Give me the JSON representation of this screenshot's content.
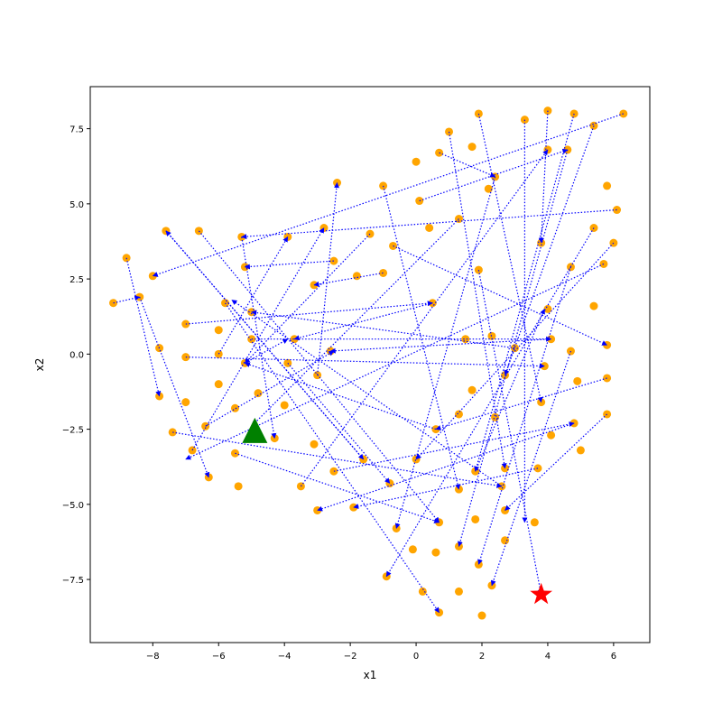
{
  "chart_data": {
    "type": "scatter",
    "title": "",
    "xlabel": "x1",
    "ylabel": "x2",
    "xlim": [
      -9.9,
      7.1
    ],
    "ylim": [
      -9.6,
      8.9
    ],
    "xticks": [
      -8,
      -6,
      -4,
      -2,
      0,
      2,
      4,
      6
    ],
    "xtick_labels": [
      "−8",
      "−6",
      "−4",
      "−2",
      "0",
      "2",
      "4",
      "6"
    ],
    "yticks": [
      -7.5,
      -5.0,
      -2.5,
      0.0,
      2.5,
      5.0,
      7.5
    ],
    "ytick_labels": [
      "−7.5",
      "−5.0",
      "−2.5",
      "0.0",
      "2.5",
      "5.0",
      "7.5"
    ],
    "grid": false,
    "colors": {
      "points": "#ffa500",
      "arrows": "#0000ff",
      "start": "#008000",
      "goal": "#ff0000"
    },
    "points": [
      [
        1.9,
        8.0
      ],
      [
        3.3,
        7.8
      ],
      [
        4.0,
        8.1
      ],
      [
        4.8,
        8.0
      ],
      [
        6.3,
        8.0
      ],
      [
        1.0,
        7.4
      ],
      [
        5.4,
        7.6
      ],
      [
        1.7,
        6.9
      ],
      [
        0.7,
        6.7
      ],
      [
        4.0,
        6.8
      ],
      [
        4.6,
        6.8
      ],
      [
        0.0,
        6.4
      ],
      [
        2.4,
        5.9
      ],
      [
        -2.4,
        5.7
      ],
      [
        -1.0,
        5.6
      ],
      [
        5.8,
        5.6
      ],
      [
        2.2,
        5.5
      ],
      [
        0.1,
        5.1
      ],
      [
        1.3,
        4.5
      ],
      [
        0.4,
        4.2
      ],
      [
        5.4,
        4.2
      ],
      [
        6.1,
        4.8
      ],
      [
        -7.6,
        4.1
      ],
      [
        -6.6,
        4.1
      ],
      [
        -2.8,
        4.2
      ],
      [
        -5.3,
        3.9
      ],
      [
        -3.9,
        3.9
      ],
      [
        -1.4,
        4.0
      ],
      [
        -0.7,
        3.6
      ],
      [
        3.8,
        3.7
      ],
      [
        6.0,
        3.7
      ],
      [
        -8.8,
        3.2
      ],
      [
        -2.5,
        3.1
      ],
      [
        -5.2,
        2.9
      ],
      [
        -8.0,
        2.6
      ],
      [
        -1.8,
        2.6
      ],
      [
        -1.0,
        2.7
      ],
      [
        1.9,
        2.8
      ],
      [
        4.7,
        2.9
      ],
      [
        5.7,
        3.0
      ],
      [
        -3.1,
        2.3
      ],
      [
        -8.4,
        1.9
      ],
      [
        -9.2,
        1.7
      ],
      [
        -5.8,
        1.7
      ],
      [
        0.5,
        1.7
      ],
      [
        5.4,
        1.6
      ],
      [
        -5.0,
        1.4
      ],
      [
        4.0,
        1.5
      ],
      [
        -7.0,
        1.0
      ],
      [
        -6.0,
        0.8
      ],
      [
        -3.7,
        0.5
      ],
      [
        -5.0,
        0.5
      ],
      [
        1.5,
        0.5
      ],
      [
        4.1,
        0.5
      ],
      [
        2.3,
        0.6
      ],
      [
        -7.8,
        0.2
      ],
      [
        3.0,
        0.2
      ],
      [
        4.7,
        0.1
      ],
      [
        5.8,
        0.3
      ],
      [
        -2.6,
        0.1
      ],
      [
        -7.0,
        -0.1
      ],
      [
        -6.0,
        0.0
      ],
      [
        -5.2,
        -0.3
      ],
      [
        -3.9,
        -0.3
      ],
      [
        3.9,
        -0.4
      ],
      [
        -3.0,
        -0.7
      ],
      [
        2.7,
        -0.7
      ],
      [
        5.8,
        -0.8
      ],
      [
        4.9,
        -0.9
      ],
      [
        -6.0,
        -1.0
      ],
      [
        -7.8,
        -1.4
      ],
      [
        -4.8,
        -1.3
      ],
      [
        1.7,
        -1.2
      ],
      [
        3.8,
        -1.6
      ],
      [
        -7.0,
        -1.6
      ],
      [
        -4.0,
        -1.7
      ],
      [
        -5.5,
        -1.8
      ],
      [
        1.3,
        -2.0
      ],
      [
        2.4,
        -2.1
      ],
      [
        5.8,
        -2.0
      ],
      [
        -6.4,
        -2.4
      ],
      [
        0.6,
        -2.5
      ],
      [
        4.8,
        -2.3
      ],
      [
        -7.4,
        -2.6
      ],
      [
        4.1,
        -2.7
      ],
      [
        -4.3,
        -2.8
      ],
      [
        -6.8,
        -3.2
      ],
      [
        -3.1,
        -3.0
      ],
      [
        5.0,
        -3.2
      ],
      [
        -5.5,
        -3.3
      ],
      [
        -1.6,
        -3.5
      ],
      [
        0.0,
        -3.5
      ],
      [
        -2.5,
        -3.9
      ],
      [
        1.8,
        -3.9
      ],
      [
        2.7,
        -3.8
      ],
      [
        3.7,
        -3.8
      ],
      [
        -6.3,
        -4.1
      ],
      [
        -3.5,
        -4.4
      ],
      [
        -0.8,
        -4.3
      ],
      [
        1.3,
        -4.5
      ],
      [
        2.6,
        -4.4
      ],
      [
        -5.4,
        -4.4
      ],
      [
        -1.9,
        -5.1
      ],
      [
        -3.0,
        -5.2
      ],
      [
        2.7,
        -5.2
      ],
      [
        0.7,
        -5.6
      ],
      [
        1.8,
        -5.5
      ],
      [
        3.6,
        -5.6
      ],
      [
        -0.6,
        -5.8
      ],
      [
        2.7,
        -6.2
      ],
      [
        -0.1,
        -6.5
      ],
      [
        1.3,
        -6.4
      ],
      [
        0.6,
        -6.6
      ],
      [
        1.9,
        -7.0
      ],
      [
        -0.9,
        -7.4
      ],
      [
        2.3,
        -7.7
      ],
      [
        0.2,
        -7.9
      ],
      [
        1.3,
        -7.9
      ],
      [
        0.7,
        -8.6
      ],
      [
        2.0,
        -8.7
      ]
    ],
    "arrows": [
      [
        [
          6.3,
          8.0
        ],
        [
          -8.0,
          2.6
        ]
      ],
      [
        [
          6.1,
          4.8
        ],
        [
          -5.3,
          3.9
        ]
      ],
      [
        [
          -8.8,
          3.2
        ],
        [
          -7.8,
          -1.4
        ]
      ],
      [
        [
          -9.2,
          1.7
        ],
        [
          -8.4,
          1.9
        ]
      ],
      [
        [
          -8.4,
          1.9
        ],
        [
          -6.3,
          -4.1
        ]
      ],
      [
        [
          -6.6,
          4.1
        ],
        [
          0.7,
          -5.6
        ]
      ],
      [
        [
          -5.3,
          3.9
        ],
        [
          -4.3,
          -2.8
        ]
      ],
      [
        [
          -5.8,
          1.7
        ],
        [
          0.7,
          -8.6
        ]
      ],
      [
        [
          -7.6,
          4.1
        ],
        [
          -1.6,
          -3.5
        ]
      ],
      [
        [
          -7.0,
          -0.1
        ],
        [
          3.9,
          -0.4
        ]
      ],
      [
        [
          -7.0,
          1.0
        ],
        [
          0.5,
          1.7
        ]
      ],
      [
        [
          -6.0,
          0.0
        ],
        [
          -3.9,
          3.9
        ]
      ],
      [
        [
          -6.8,
          -3.2
        ],
        [
          -2.8,
          4.2
        ]
      ],
      [
        [
          -6.4,
          -2.4
        ],
        [
          -2.5,
          0.1
        ]
      ],
      [
        [
          -5.0,
          0.5
        ],
        [
          4.1,
          0.5
        ]
      ],
      [
        [
          -5.5,
          -3.3
        ],
        [
          0.7,
          -5.6
        ]
      ],
      [
        [
          -3.9,
          -0.3
        ],
        [
          -0.8,
          -4.3
        ]
      ],
      [
        [
          -3.5,
          -4.4
        ],
        [
          4.0,
          6.8
        ]
      ],
      [
        [
          -3.0,
          -0.7
        ],
        [
          -2.4,
          5.7
        ]
      ],
      [
        [
          -2.5,
          3.1
        ],
        [
          -5.2,
          2.9
        ]
      ],
      [
        [
          -1.4,
          4.0
        ],
        [
          -5.2,
          -0.3
        ]
      ],
      [
        [
          -1.0,
          2.7
        ],
        [
          -3.1,
          2.3
        ]
      ],
      [
        [
          -1.0,
          5.6
        ],
        [
          1.3,
          -4.5
        ]
      ],
      [
        [
          -0.7,
          3.6
        ],
        [
          5.8,
          0.3
        ]
      ],
      [
        [
          0.5,
          1.7
        ],
        [
          -3.7,
          0.5
        ]
      ],
      [
        [
          0.7,
          6.7
        ],
        [
          2.4,
          5.9
        ]
      ],
      [
        [
          1.0,
          7.4
        ],
        [
          2.7,
          -3.8
        ]
      ],
      [
        [
          1.9,
          8.0
        ],
        [
          3.8,
          -1.6
        ]
      ],
      [
        [
          3.3,
          7.8
        ],
        [
          3.3,
          -5.6
        ]
      ],
      [
        [
          4.0,
          8.1
        ],
        [
          3.8,
          3.7
        ]
      ],
      [
        [
          4.8,
          8.0
        ],
        [
          1.8,
          -3.9
        ]
      ],
      [
        [
          5.4,
          7.6
        ],
        [
          2.7,
          -0.7
        ]
      ],
      [
        [
          0.1,
          5.1
        ],
        [
          4.6,
          6.8
        ]
      ],
      [
        [
          1.3,
          4.5
        ],
        [
          -5.0,
          -2.4
        ]
      ],
      [
        [
          1.9,
          2.8
        ],
        [
          3.8,
          -8.0
        ]
      ],
      [
        [
          2.4,
          5.9
        ],
        [
          -0.6,
          -5.8
        ]
      ],
      [
        [
          4.6,
          6.8
        ],
        [
          1.3,
          -6.4
        ]
      ],
      [
        [
          4.7,
          2.9
        ],
        [
          1.9,
          -7.0
        ]
      ],
      [
        [
          5.7,
          3.0
        ],
        [
          -7.0,
          -3.5
        ]
      ],
      [
        [
          6.0,
          3.7
        ],
        [
          0.0,
          -3.5
        ]
      ],
      [
        [
          5.8,
          -0.8
        ],
        [
          0.6,
          -2.5
        ]
      ],
      [
        [
          5.4,
          4.2
        ],
        [
          -0.9,
          -7.4
        ]
      ],
      [
        [
          4.1,
          0.5
        ],
        [
          -2.6,
          0.1
        ]
      ],
      [
        [
          3.0,
          0.2
        ],
        [
          -5.0,
          1.4
        ]
      ],
      [
        [
          4.7,
          0.1
        ],
        [
          2.3,
          -7.7
        ]
      ],
      [
        [
          5.8,
          -2.0
        ],
        [
          2.7,
          -5.2
        ]
      ],
      [
        [
          4.8,
          -2.3
        ],
        [
          -3.0,
          -5.2
        ]
      ],
      [
        [
          3.7,
          -3.8
        ],
        [
          -1.9,
          -5.1
        ]
      ],
      [
        [
          -7.4,
          -2.6
        ],
        [
          2.6,
          -4.4
        ]
      ],
      [
        [
          2.6,
          -4.4
        ],
        [
          -5.6,
          1.8
        ]
      ],
      [
        [
          1.8,
          -3.9
        ],
        [
          3.9,
          1.5
        ]
      ],
      [
        [
          -2.5,
          -3.9
        ],
        [
          4.8,
          -2.3
        ]
      ],
      [
        [
          -1.6,
          -3.5
        ],
        [
          -7.6,
          4.1
        ]
      ],
      [
        [
          0.6,
          -2.5
        ],
        [
          -5.2,
          -0.3
        ]
      ],
      [
        [
          -5.2,
          -0.3
        ],
        [
          -3.9,
          0.5
        ]
      ]
    ]
  },
  "markers": {
    "start": {
      "symbol": "triangle",
      "x": -4.9,
      "y": -2.6
    },
    "goal": {
      "symbol": "star",
      "x": 3.8,
      "y": -8.0
    }
  }
}
